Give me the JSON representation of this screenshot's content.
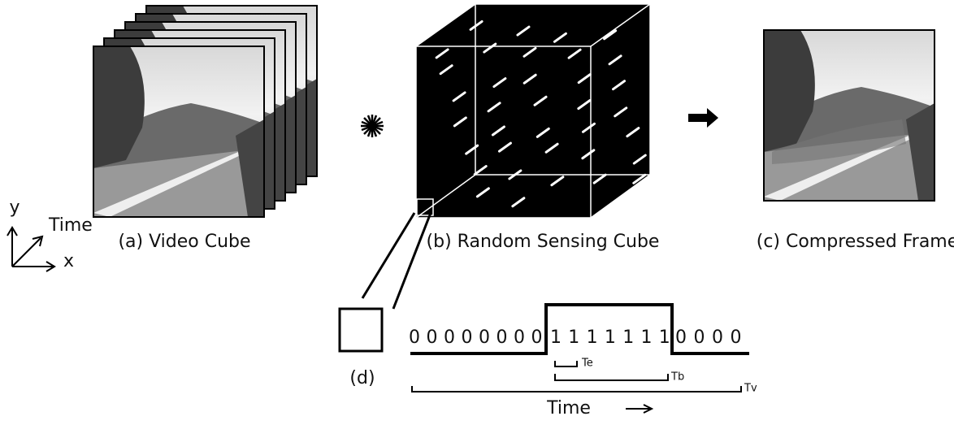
{
  "axes": {
    "y": "y",
    "time": "Time",
    "x": "x"
  },
  "captions": {
    "a": "(a) Video Cube",
    "b": "(b) Random Sensing Cube",
    "c": "(c) Compressed Frame",
    "d": "(d)"
  },
  "bits": [
    "0",
    "0",
    "0",
    "0",
    "0",
    "0",
    "0",
    "0",
    "1",
    "1",
    "1",
    "1",
    "1",
    "1",
    "1",
    "0",
    "0",
    "0",
    "0"
  ],
  "timing": {
    "te": "Te",
    "tb": "Tb",
    "tv": "Tv",
    "time": "Time"
  }
}
